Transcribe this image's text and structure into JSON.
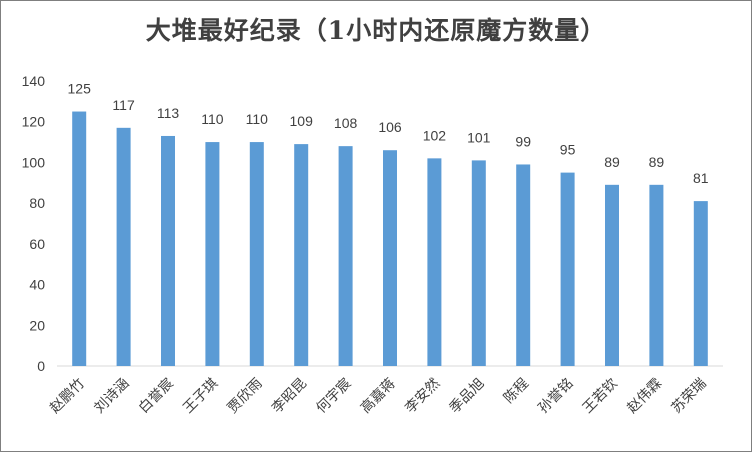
{
  "chart_data": {
    "type": "bar",
    "title": "大堆最好纪录（1小时内还原魔方数量）",
    "categories": [
      "赵鹏竹",
      "刘诗涵",
      "白誉宸",
      "王子琪",
      "贾欣雨",
      "李昭昆",
      "何宇宸",
      "高嘉蒋",
      "李安然",
      "季品旭",
      "陈程",
      "孙誉铭",
      "王若钦",
      "赵伟霖",
      "苏荣瑞"
    ],
    "values": [
      125,
      117,
      113,
      110,
      110,
      109,
      108,
      106,
      102,
      101,
      99,
      95,
      89,
      89,
      81
    ],
    "ylim": [
      0,
      140
    ],
    "yticks": [
      0,
      20,
      40,
      60,
      80,
      100,
      120,
      140
    ],
    "grid": false,
    "legend": "none",
    "bar_color": "#5b9bd5",
    "axis_color": "#d9d9d9",
    "text_color": "#404040"
  }
}
